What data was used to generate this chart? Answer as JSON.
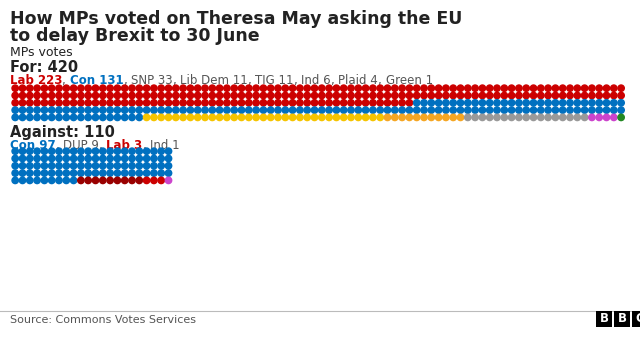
{
  "title_line1": "How MPs voted on Theresa May asking the EU",
  "title_line2": "to delay Brexit to 30 June",
  "subtitle": "MPs votes",
  "for_label": "For: 420",
  "against_label": "Against: 110",
  "for_legend": [
    {
      "party": "Lab",
      "count": 223,
      "color": "#cc0000",
      "bold": true
    },
    {
      "party": "Con",
      "count": 131,
      "color": "#0070c0",
      "bold": true
    },
    {
      "party": "SNP",
      "count": 33,
      "color": "#555555",
      "bold": false
    },
    {
      "party": "Lib Dem",
      "count": 11,
      "color": "#555555",
      "bold": false
    },
    {
      "party": "TIG",
      "count": 11,
      "color": "#555555",
      "bold": false
    },
    {
      "party": "Ind",
      "count": 6,
      "color": "#555555",
      "bold": false
    },
    {
      "party": "Plaid",
      "count": 4,
      "color": "#555555",
      "bold": false
    },
    {
      "party": "Green",
      "count": 1,
      "color": "#555555",
      "bold": false
    }
  ],
  "against_legend": [
    {
      "party": "Con",
      "count": 97,
      "color": "#0070c0",
      "bold": true
    },
    {
      "party": "DUP",
      "count": 9,
      "color": "#555555",
      "bold": false
    },
    {
      "party": "Lab",
      "count": 3,
      "color": "#cc0000",
      "bold": true
    },
    {
      "party": "Ind",
      "count": 1,
      "color": "#555555",
      "bold": false
    }
  ],
  "for_dots": [
    {
      "party": "Lab",
      "count": 223,
      "color": "#cc0000"
    },
    {
      "party": "Con",
      "count": 131,
      "color": "#0070c0"
    },
    {
      "party": "SNP",
      "count": 33,
      "color": "#f5c400"
    },
    {
      "party": "Lib Dem",
      "count": 11,
      "color": "#f5a623"
    },
    {
      "party": "TIG",
      "count": 11,
      "color": "#999999"
    },
    {
      "party": "Ind",
      "count": 6,
      "color": "#999999"
    },
    {
      "party": "Plaid",
      "count": 4,
      "color": "#cc44cc"
    },
    {
      "party": "Green",
      "count": 1,
      "color": "#228822"
    }
  ],
  "against_dots": [
    {
      "party": "Con",
      "count": 97,
      "color": "#0070c0"
    },
    {
      "party": "DUP",
      "count": 9,
      "color": "#990000"
    },
    {
      "party": "Lab",
      "count": 3,
      "color": "#cc0000"
    },
    {
      "party": "Ind",
      "count": 1,
      "color": "#cc44cc"
    }
  ],
  "source": "Source: Commons Votes Services",
  "bg_color": "#ffffff",
  "text_color": "#222222"
}
